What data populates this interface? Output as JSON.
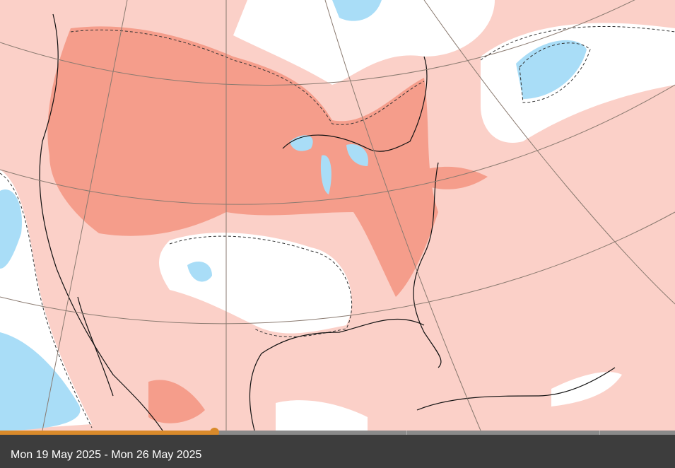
{
  "caption": "Mon 19 May 2025 - Mon 26 May 2025"
}
